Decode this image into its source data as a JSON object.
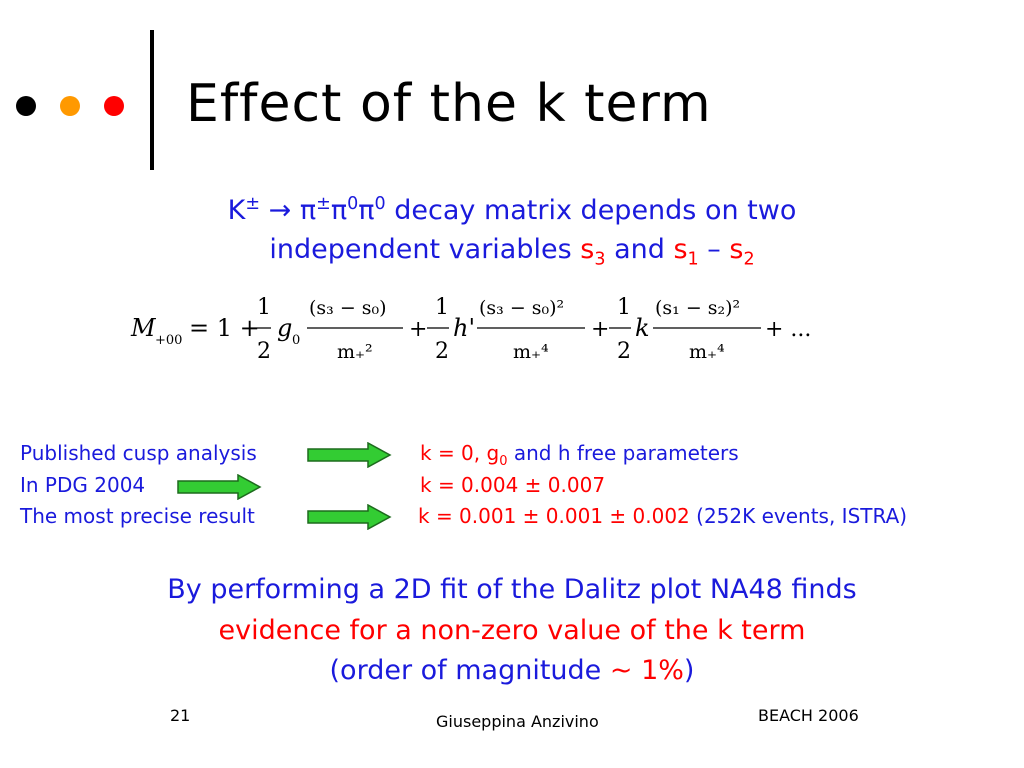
{
  "slide": {
    "title": "Effect of the k term",
    "dots": [
      "#000000",
      "#ff9900",
      "#ff0000"
    ],
    "subtitle": {
      "kaon": "K",
      "kaon_charge": "±",
      "arrow": "→",
      "pion": "π",
      "pion_charge": "±",
      "pi0_a": "π",
      "pi0_a_sup": "0",
      "pi0_b": "π",
      "pi0_b_sup": "0",
      "text1": " decay matrix depends on two",
      "text2": "independent variables ",
      "s3": "s",
      "s3_sub": "3",
      "and": " and ",
      "s1": "s",
      "s1_sub": "1",
      "dash": " – ",
      "s2": "s",
      "s2_sub": "2"
    },
    "equation": {
      "M": "M",
      "M_sub": "+00",
      "eq_one": "= 1 +",
      "frac_num": "1",
      "frac_den": "2",
      "g0": "g",
      "g0_sub": "0",
      "term1_num": "(s₃ − s₀)",
      "term1_den": "m₊²",
      "plus": "+",
      "h": "h'",
      "term2_num": "(s₃ − s₀)²",
      "term2_den": "m₊⁴",
      "k": "k",
      "term3_num": "(s₁ − s₂)²",
      "term3_den": "m₊⁴",
      "tail": "+ ..."
    },
    "rows": [
      {
        "left": "Published cusp analysis",
        "right_red": "k = 0, g",
        "right_red_sub": "0",
        "right_blue": " and h free parameters"
      },
      {
        "left": "In PDG 2004",
        "right_red": "k = 0.004 ± 0.007",
        "right_blue": ""
      },
      {
        "left": "The most precise result",
        "right_red": "k = 0.001 ± 0.001 ± 0.002",
        "right_blue": "  (252K events, ISTRA)"
      }
    ],
    "conclusion": {
      "line1": "By performing a 2D fit of the Dalitz plot NA48 finds",
      "line2": "evidence for a non-zero value of the k term",
      "line3_a": "(order of magnitude  ",
      "line3_b": "~ 1%",
      "line3_c": ")"
    },
    "footer": {
      "page": "21",
      "author": "Giuseppina Anzivino",
      "event": "BEACH 2006"
    },
    "colors": {
      "accent_blue": "#1a1adc",
      "accent_red": "#ff0000",
      "arrow_green": "#33cc33"
    }
  }
}
